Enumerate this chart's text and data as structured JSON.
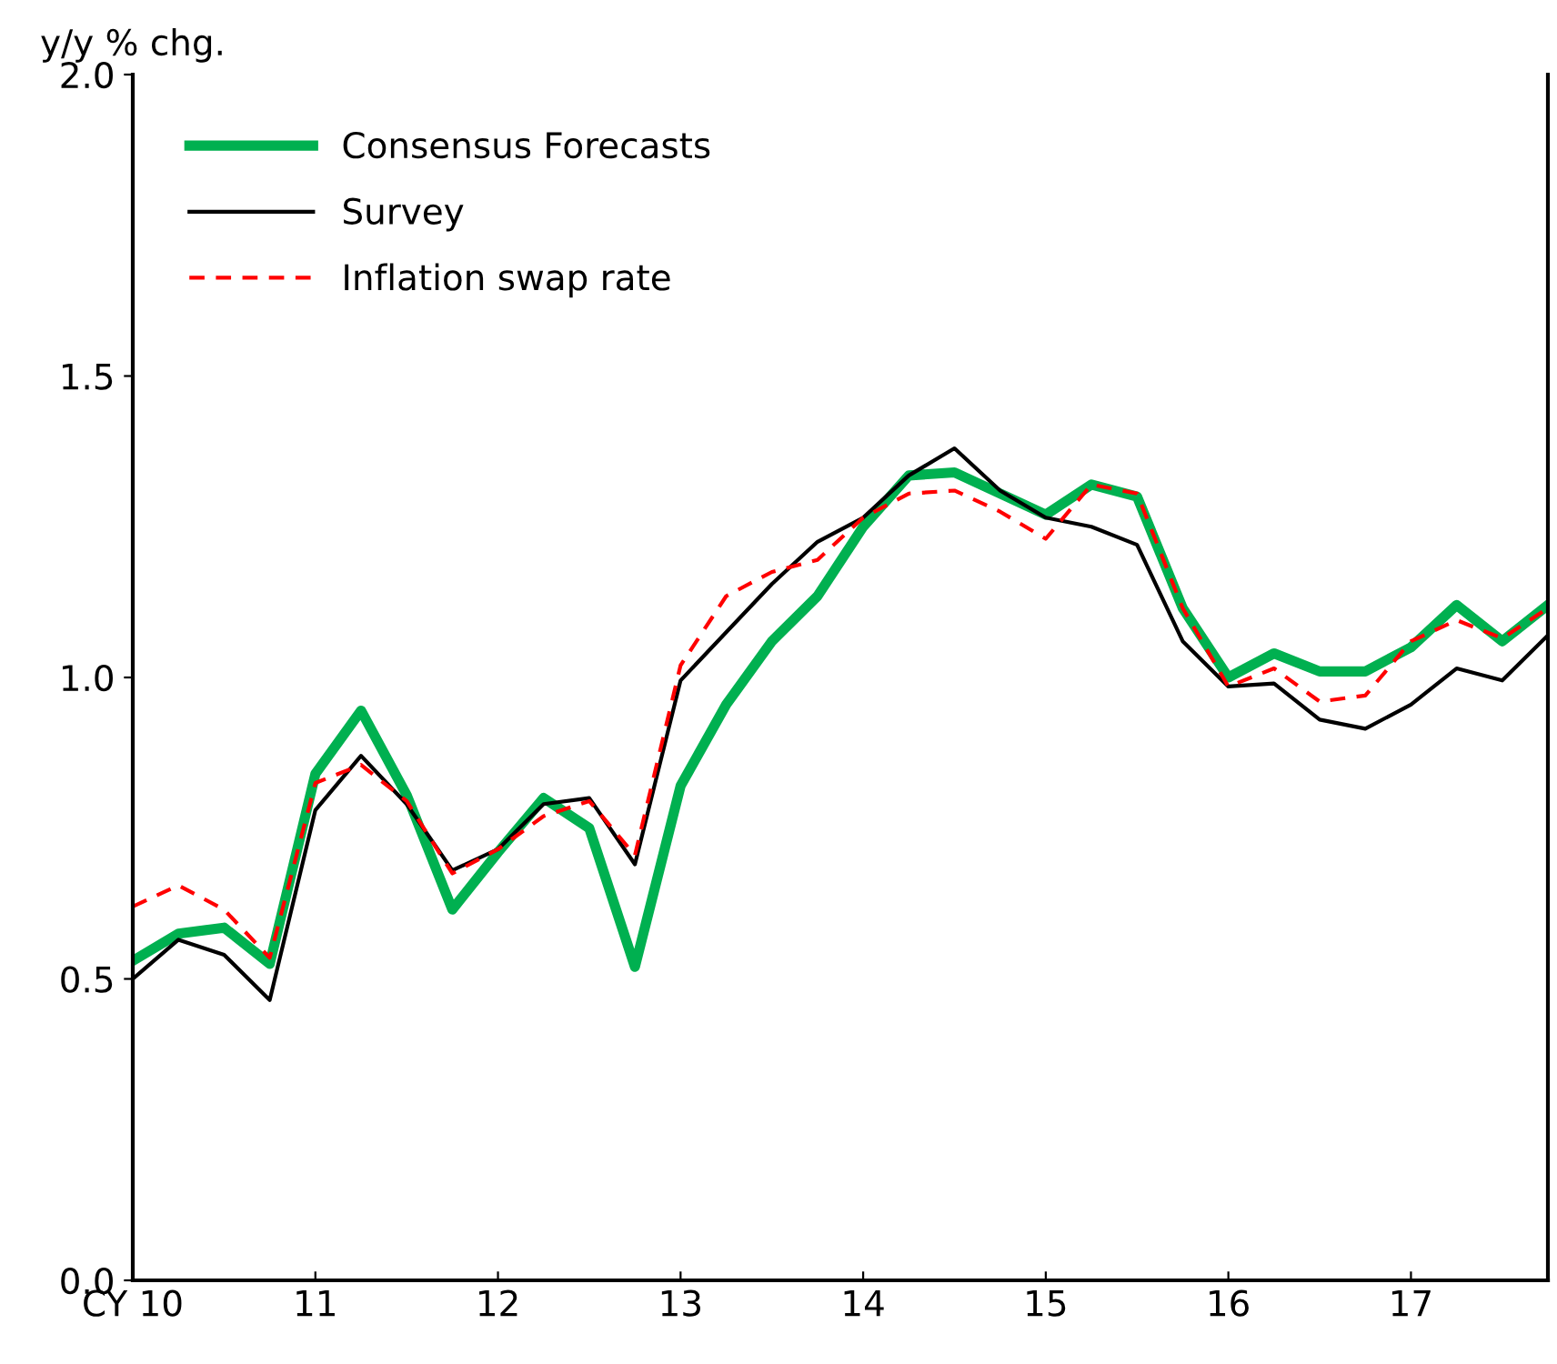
{
  "chart_data": {
    "type": "line",
    "ylabel": "y/y % chg.",
    "x": [
      10,
      10.25,
      10.5,
      10.75,
      11,
      11.25,
      11.5,
      11.75,
      12,
      12.25,
      12.5,
      12.75,
      13,
      13.25,
      13.5,
      13.75,
      14,
      14.25,
      14.5,
      14.75,
      15,
      15.25,
      15.5,
      15.75,
      16,
      16.25,
      16.5,
      16.75,
      17,
      17.25,
      17.5,
      17.75
    ],
    "series": [
      {
        "name": "Consensus Forecasts",
        "color": "#00b050",
        "line_style": "solid",
        "values": [
          0.53,
          0.575,
          0.585,
          0.525,
          0.84,
          0.945,
          0.805,
          0.615,
          0.71,
          0.8,
          0.75,
          0.52,
          0.82,
          0.955,
          1.06,
          1.135,
          1.25,
          1.335,
          1.34,
          1.305,
          1.27,
          1.32,
          1.3,
          1.115,
          1.0,
          1.04,
          1.01,
          1.01,
          1.05,
          1.12,
          1.06,
          1.12
        ]
      },
      {
        "name": "Survey",
        "color": "#000000",
        "line_style": "solid",
        "values": [
          0.5,
          0.565,
          0.54,
          0.465,
          0.78,
          0.87,
          0.79,
          0.68,
          0.715,
          0.79,
          0.8,
          0.69,
          0.995,
          1.075,
          1.155,
          1.225,
          1.265,
          1.335,
          1.38,
          1.31,
          1.265,
          1.25,
          1.22,
          1.06,
          0.985,
          0.99,
          0.93,
          0.915,
          0.955,
          1.015,
          0.995,
          1.07
        ]
      },
      {
        "name": "Inflation swap rate",
        "color": "#ff0000",
        "line_style": "dashed",
        "values": [
          0.62,
          0.655,
          0.615,
          0.535,
          0.825,
          0.855,
          0.795,
          0.675,
          0.715,
          0.77,
          0.795,
          0.705,
          1.02,
          1.135,
          1.175,
          1.195,
          1.265,
          1.305,
          1.31,
          1.275,
          1.23,
          1.32,
          1.305,
          1.115,
          0.985,
          1.015,
          0.96,
          0.97,
          1.06,
          1.095,
          1.065,
          1.115
        ]
      }
    ],
    "xlim": [
      10,
      17.75
    ],
    "xticks": [
      {
        "value": 10,
        "label": "CY 10"
      },
      11,
      12,
      13,
      14,
      15,
      16,
      17
    ],
    "ylim": [
      0,
      2
    ],
    "yticks": [
      {
        "value": 0,
        "label": "0.0"
      },
      0.5,
      {
        "value": 1,
        "label": "1.0"
      },
      1.5,
      {
        "value": 2,
        "label": "2.0"
      }
    ],
    "grid": false,
    "legend": "top left"
  }
}
